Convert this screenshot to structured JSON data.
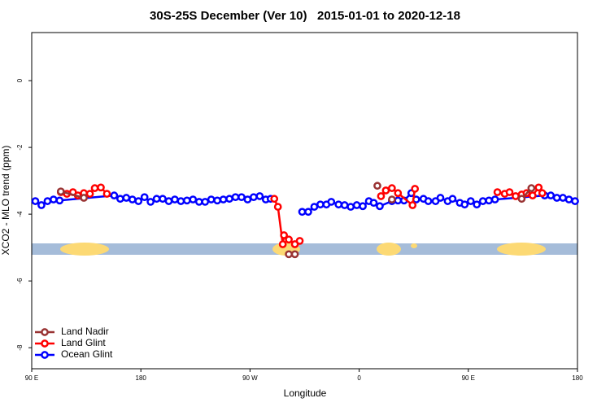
{
  "chart_data": {
    "type": "line",
    "title": "30S-25S December (Ver 10)   2015-01-01 to 2020-12-18",
    "x_label": "Longitude",
    "y_label": "XCO2 - MLO trend (ppm)",
    "xlim": [
      90,
      540
    ],
    "ylim": [
      -8.63,
      1.44
    ],
    "xticks": [
      {
        "value": 90,
        "label": "90 E"
      },
      180,
      {
        "value": 270,
        "label": "90 W"
      },
      {
        "value": 360,
        "label": "0"
      },
      {
        "value": 450,
        "label": "90 E"
      },
      {
        "value": 540,
        "label": "180"
      }
    ],
    "yticks": [
      0,
      -2,
      -4,
      -6,
      -8
    ],
    "legend": "bottomleft",
    "series": [
      {
        "name": "Land Nadir",
        "color": "#993333",
        "x": [
          114,
          133,
          null,
          302,
          307,
          null,
          375,
          null,
          387,
          null,
          494,
          502
        ],
        "values": [
          -3.32,
          -3.51,
          null,
          -5.2,
          -5.2,
          null,
          -3.15,
          null,
          -3.56,
          null,
          -3.54,
          -3.22
        ]
      },
      {
        "name": "Land Glint",
        "color": "#ff0000",
        "x": [
          114,
          119,
          124,
          128,
          133,
          138,
          142,
          147,
          152,
          null,
          290,
          293,
          297,
          298,
          302,
          307,
          311,
          null,
          378,
          382,
          387,
          392,
          404,
          406,
          null,
          474,
          480,
          484,
          489,
          494,
          498,
          503,
          508,
          511
        ],
        "values": [
          -3.34,
          -3.39,
          -3.34,
          -3.44,
          -3.37,
          -3.39,
          -3.22,
          -3.2,
          -3.39,
          null,
          -3.54,
          -3.78,
          -4.9,
          -4.63,
          -4.76,
          -4.9,
          -4.8,
          null,
          -3.46,
          -3.29,
          -3.22,
          -3.37,
          -3.73,
          -3.24,
          null,
          -3.34,
          -3.39,
          -3.34,
          -3.46,
          -3.41,
          -3.37,
          -3.44,
          -3.2,
          -3.37
        ]
      },
      {
        "name": "Ocean Glint",
        "color": "#0000ff",
        "x": [
          93,
          98,
          103,
          108,
          113,
          158,
          163,
          168,
          173,
          178,
          183,
          188,
          193,
          198,
          203,
          208,
          213,
          218,
          223,
          228,
          233,
          238,
          243,
          248,
          253,
          258,
          263,
          268,
          273,
          278,
          283,
          287,
          null,
          313,
          318,
          323,
          328,
          333,
          337,
          343,
          348,
          353,
          358,
          363,
          368,
          372,
          377,
          387,
          392,
          397,
          403,
          407,
          413,
          417,
          423,
          427,
          433,
          437,
          443,
          447,
          452,
          457,
          462,
          467,
          472,
          513,
          518,
          523,
          528,
          533,
          538
        ],
        "values": [
          -3.61,
          -3.73,
          -3.61,
          -3.56,
          -3.59,
          -3.44,
          -3.54,
          -3.51,
          -3.56,
          -3.61,
          -3.49,
          -3.63,
          -3.54,
          -3.54,
          -3.61,
          -3.56,
          -3.61,
          -3.59,
          -3.56,
          -3.63,
          -3.63,
          -3.56,
          -3.59,
          -3.56,
          -3.54,
          -3.49,
          -3.49,
          -3.56,
          -3.49,
          -3.46,
          -3.56,
          -3.54,
          null,
          -3.93,
          -3.93,
          -3.78,
          -3.71,
          -3.71,
          -3.63,
          -3.71,
          -3.73,
          -3.78,
          -3.73,
          -3.76,
          -3.61,
          -3.66,
          -3.76,
          -3.61,
          -3.59,
          -3.59,
          -3.37,
          -3.56,
          -3.54,
          -3.61,
          -3.61,
          -3.51,
          -3.61,
          -3.54,
          -3.66,
          -3.71,
          -3.61,
          -3.71,
          -3.61,
          -3.59,
          -3.56,
          -3.44,
          -3.44,
          -3.51,
          -3.51,
          -3.56,
          -3.61
        ]
      }
    ]
  }
}
